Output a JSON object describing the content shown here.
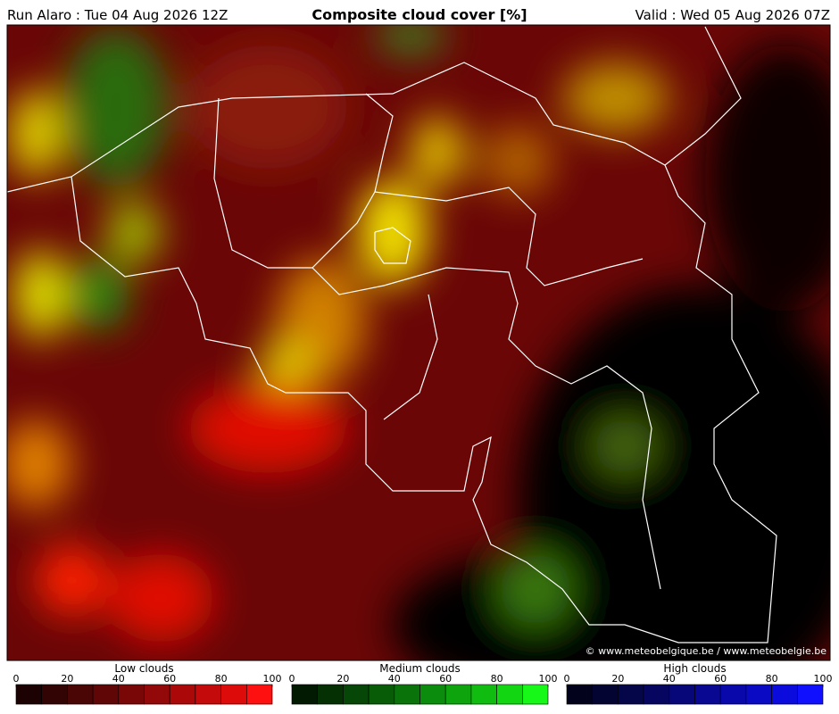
{
  "header": {
    "run": "Run Alaro : Tue 04 Aug 2026 12Z",
    "title": "Composite cloud cover [%]",
    "valid": "Valid : Wed 05 Aug 2026 07Z"
  },
  "credit": "© www.meteobelgique.be / www.meteobelgie.be",
  "legends": [
    {
      "title": "Low clouds",
      "ticks": [
        0,
        20,
        40,
        60,
        80,
        100
      ],
      "colors": [
        "#1c0202",
        "#330404",
        "#4a0505",
        "#610606",
        "#7a0707",
        "#930808",
        "#ab0909",
        "#c40a0a",
        "#de0b0b",
        "#ff1010"
      ]
    },
    {
      "title": "Medium clouds",
      "ticks": [
        0,
        20,
        40,
        60,
        80,
        100
      ],
      "colors": [
        "#021a02",
        "#043004",
        "#064606",
        "#085c08",
        "#0a740a",
        "#0c8c0c",
        "#0ea40e",
        "#10bc10",
        "#12d612",
        "#18f818"
      ]
    },
    {
      "title": "High clouds",
      "ticks": [
        0,
        20,
        40,
        60,
        80,
        100
      ],
      "colors": [
        "#02021c",
        "#040433",
        "#05054a",
        "#060661",
        "#07077a",
        "#080893",
        "#0909ab",
        "#0a0ac4",
        "#0b0bde",
        "#1010ff"
      ]
    }
  ]
}
